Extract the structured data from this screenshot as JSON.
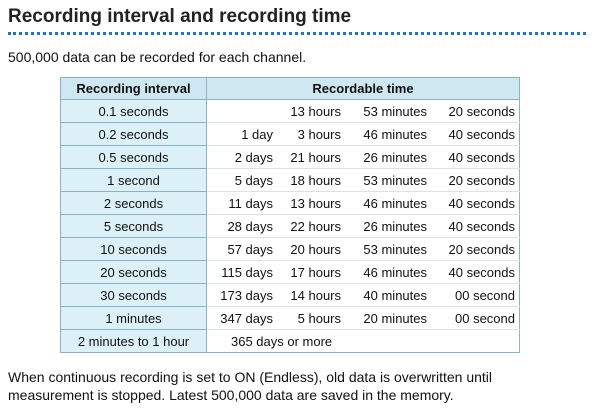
{
  "header": {
    "title": "Recording interval and recording time"
  },
  "intro": "500,000 data can be recorded for each channel.",
  "table": {
    "columns": [
      "Recording interval",
      "Recordable time"
    ],
    "rows": [
      {
        "interval": "0.1 seconds",
        "time": [
          "13 hours",
          "53 minutes",
          "20 seconds"
        ]
      },
      {
        "interval": "0.2 seconds",
        "time": [
          "1 day",
          "3 hours",
          "46 minutes",
          "40 seconds"
        ]
      },
      {
        "interval": "0.5 seconds",
        "time": [
          "2 days",
          "21 hours",
          "26 minutes",
          "40 seconds"
        ]
      },
      {
        "interval": "1 second",
        "time": [
          "5 days",
          "18 hours",
          "53 minutes",
          "20 seconds"
        ]
      },
      {
        "interval": "2 seconds",
        "time": [
          "11 days",
          "13 hours",
          "46 minutes",
          "40 seconds"
        ]
      },
      {
        "interval": "5 seconds",
        "time": [
          "28 days",
          "22 hours",
          "26 minutes",
          "40 seconds"
        ]
      },
      {
        "interval": "10 seconds",
        "time": [
          "57 days",
          "20 hours",
          "53 minutes",
          "20 seconds"
        ]
      },
      {
        "interval": "20 seconds",
        "time": [
          "115 days",
          "17 hours",
          "46 minutes",
          "40 seconds"
        ]
      },
      {
        "interval": "30 seconds",
        "time": [
          "173 days",
          "14 hours",
          "40 minutes",
          "00 second"
        ]
      },
      {
        "interval": "1 minutes",
        "time": [
          "347 days",
          "5 hours",
          "20 minutes",
          "00 second"
        ]
      },
      {
        "interval": "2 minutes to 1 hour",
        "time": [
          "365 days or more"
        ]
      }
    ]
  },
  "footer": "When continuous recording is set to ON (Endless), old data is overwritten until measurement is stopped. Latest 500,000 data are saved in the memory."
}
